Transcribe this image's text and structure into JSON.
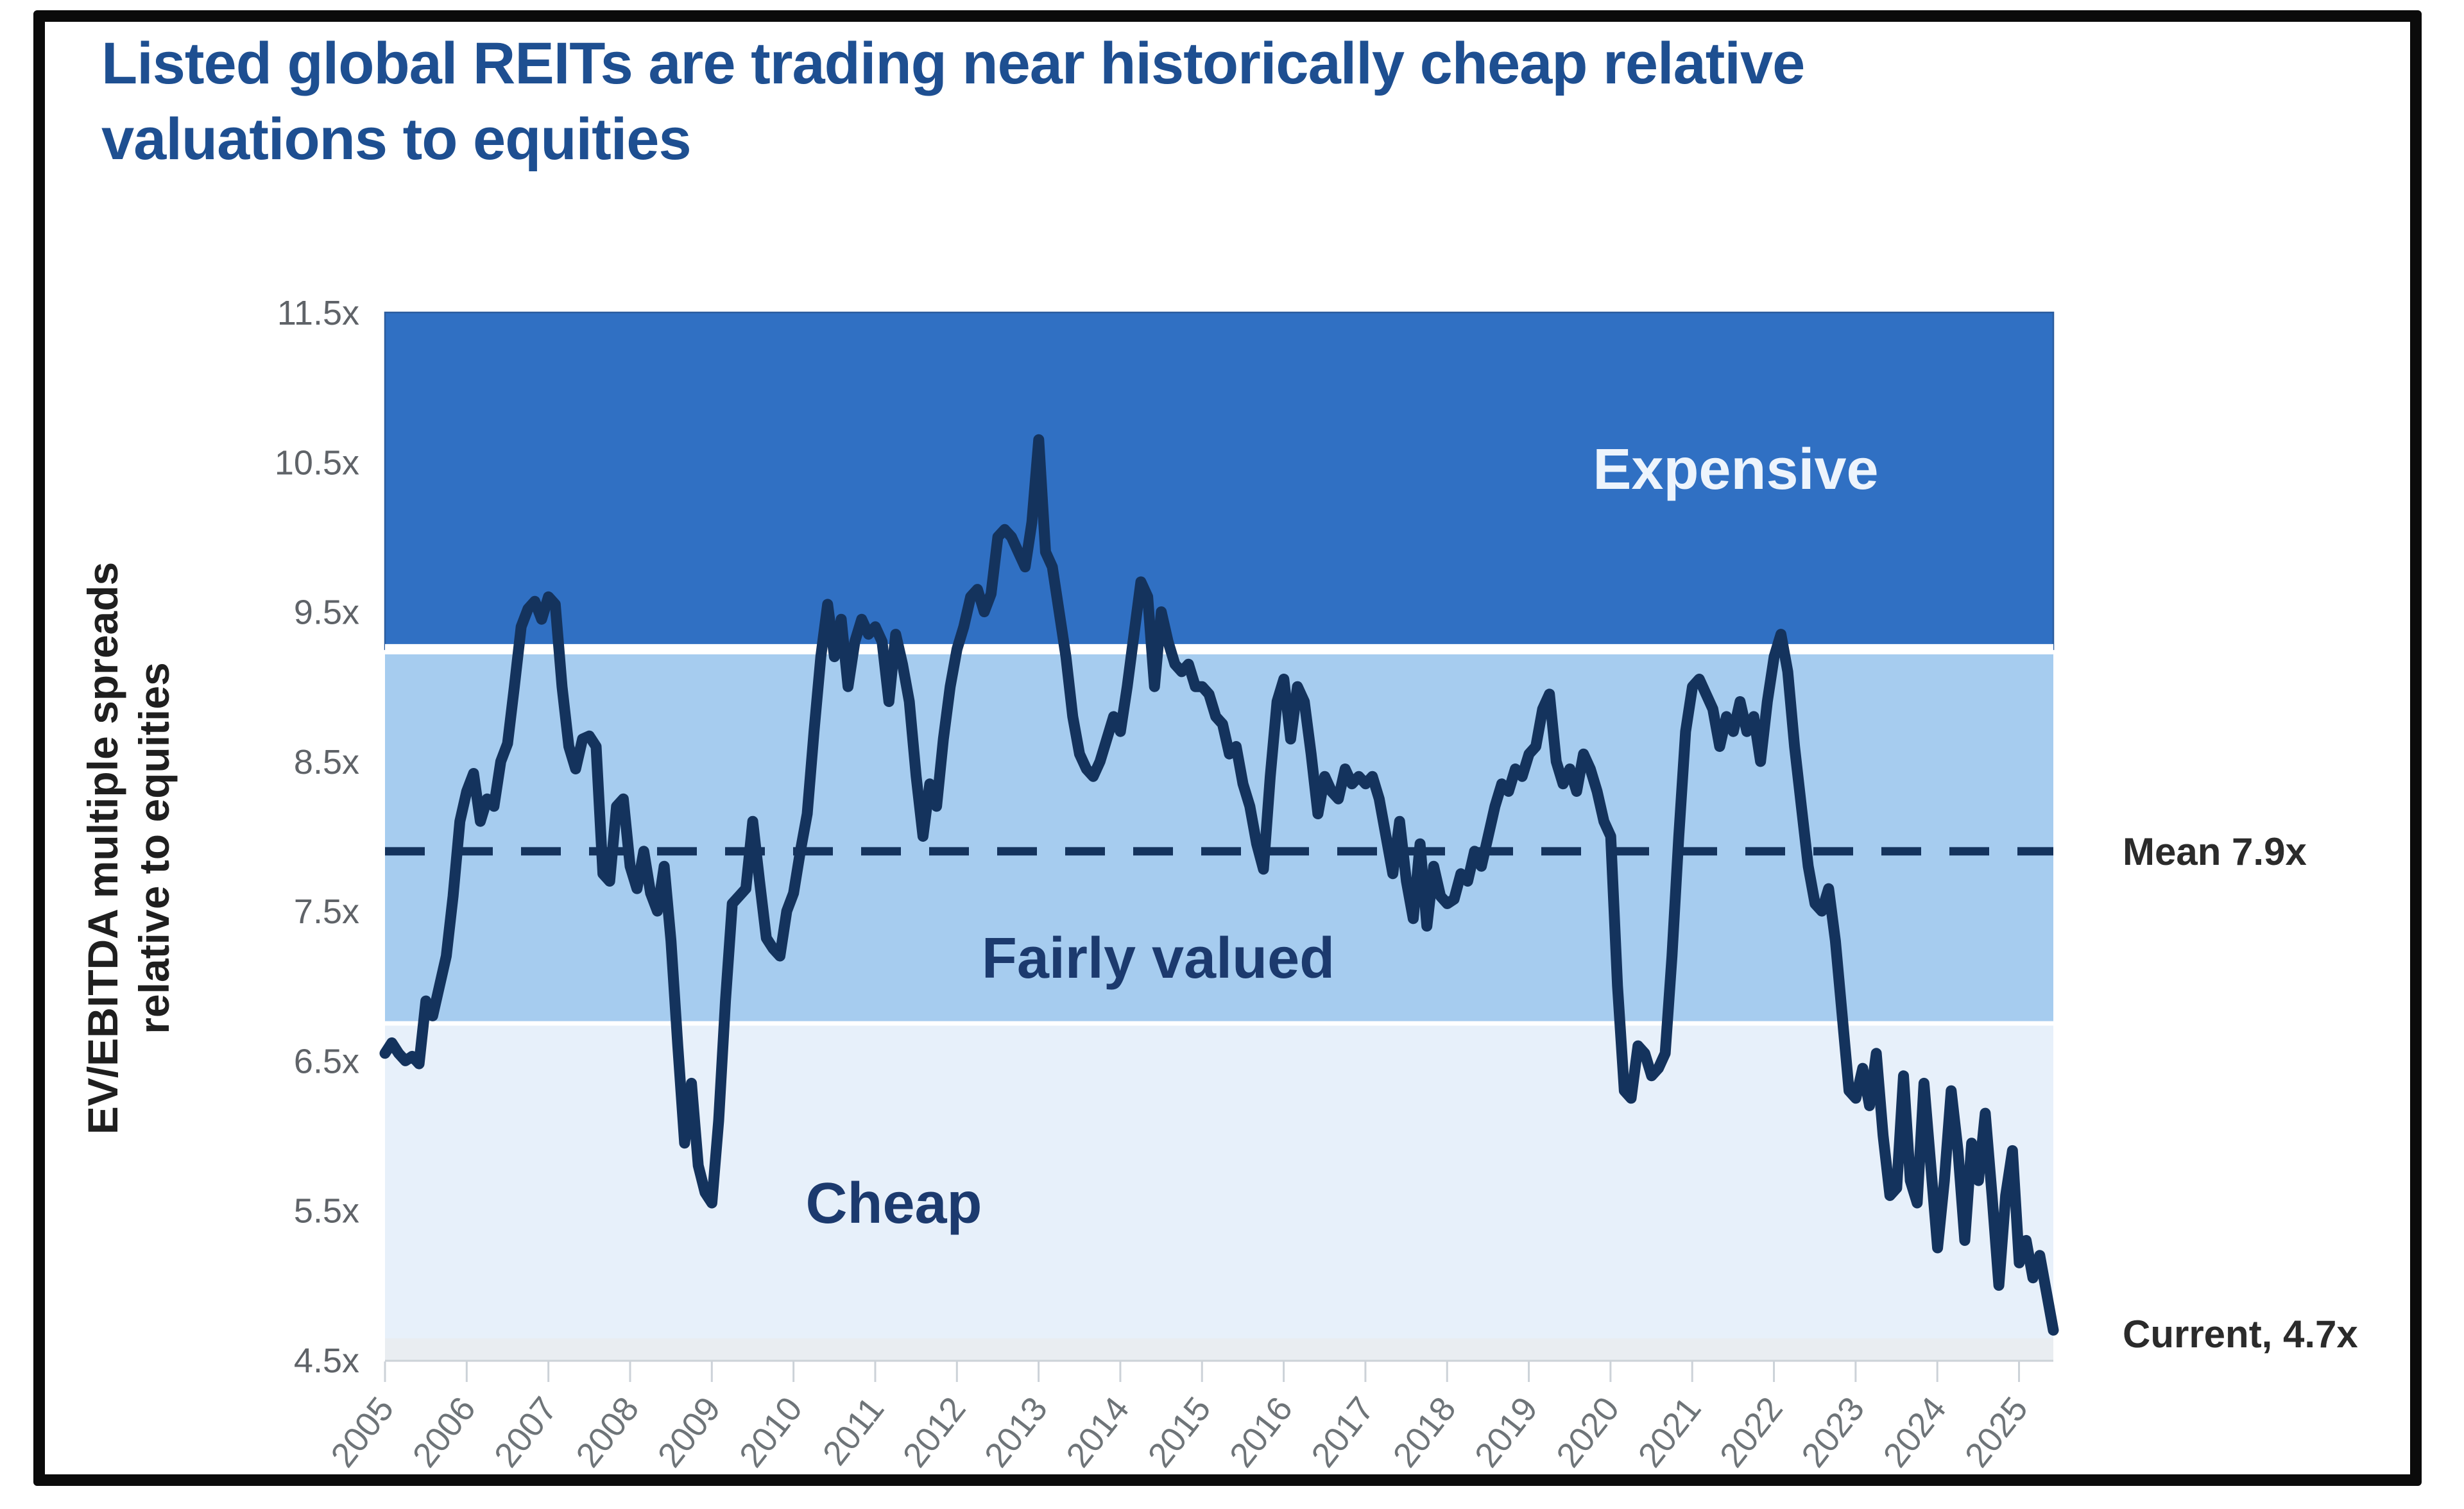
{
  "title": {
    "line1": "Listed global REITs are trading near historically cheap relative",
    "line2": "valuations to equities"
  },
  "y_axis": {
    "title_line1": "EV/EBITDA multiple spreads",
    "title_line2": "relative to equities",
    "tick_labels": [
      "11.5x",
      "10.5x",
      "9.5x",
      "8.5x",
      "7.5x",
      "6.5x",
      "5.5x",
      "4.5x"
    ],
    "tick_values": [
      11.5,
      10.5,
      9.5,
      8.5,
      7.5,
      6.5,
      5.5,
      4.5
    ]
  },
  "x_axis": {
    "labels": [
      "2005",
      "2006",
      "2007",
      "2008",
      "2009",
      "2010",
      "2011",
      "2012",
      "2013",
      "2014",
      "2015",
      "2016",
      "2017",
      "2018",
      "2019",
      "2020",
      "2021",
      "2022",
      "2023",
      "2024",
      "2025"
    ]
  },
  "zones": {
    "expensive": {
      "label": "Expensive",
      "from": 9.25,
      "to": 11.5,
      "color": "#3070c3"
    },
    "fairly_valued": {
      "label": "Fairly valued",
      "from": 6.75,
      "to": 9.25,
      "color": "#a6ccef"
    },
    "cheap": {
      "label": "Cheap",
      "from": 4.5,
      "to": 6.75,
      "color": "#e7f0fa"
    }
  },
  "annotations": {
    "mean": {
      "label": "Mean 7.9x",
      "value": 7.9
    },
    "current": {
      "label": "Current, 4.7x",
      "value": 4.7
    }
  },
  "colors": {
    "title": "#1e4f91",
    "series_line": "#14335d",
    "mean_line": "#14335d",
    "zone_expensive": "#3070c3",
    "zone_expensive_edge": "#2b5c9e",
    "zone_fairly": "#a6ccef",
    "zone_cheap": "#e7f0fa",
    "zone_dark_label": "#1c3a6e",
    "zone_light_label": "#edf4fc",
    "axis_text": "#5f6368",
    "x_label_text": "#6e7478",
    "tick_mark": "#ccd2d8",
    "baseline_band": "#e9edf1",
    "annotation_text": "#2b2b2b"
  },
  "chart_data": {
    "type": "line",
    "title": "Listed global REITs are trading near historically cheap relative valuations to equities",
    "xlabel": "",
    "ylabel": "EV/EBITDA multiple spreads relative to equities",
    "ylim": [
      4.5,
      11.5
    ],
    "xlim_years": [
      2005.0,
      2025.42
    ],
    "frequency": "monthly",
    "grid": false,
    "legend_position": "none",
    "mean": 7.9,
    "current": 4.7,
    "zone_boundaries": {
      "expensive_above": 9.25,
      "cheap_below": 6.75
    },
    "series": [
      {
        "name": "EV/EBITDA multiple spread relative to equities",
        "start_year": 2005,
        "start_month": 1,
        "values": [
          6.55,
          6.62,
          6.55,
          6.5,
          6.53,
          6.48,
          6.9,
          6.8,
          7.0,
          7.2,
          7.6,
          8.1,
          8.3,
          8.42,
          8.1,
          8.25,
          8.2,
          8.5,
          8.62,
          9.0,
          9.4,
          9.52,
          9.57,
          9.45,
          9.6,
          9.55,
          9.0,
          8.6,
          8.45,
          8.65,
          8.67,
          8.6,
          7.75,
          7.7,
          8.2,
          8.25,
          7.8,
          7.65,
          7.9,
          7.62,
          7.5,
          7.8,
          7.3,
          6.6,
          5.95,
          6.35,
          5.8,
          5.62,
          5.55,
          6.1,
          6.9,
          7.55,
          7.6,
          7.65,
          8.1,
          7.7,
          7.32,
          7.25,
          7.2,
          7.5,
          7.62,
          7.9,
          8.15,
          8.7,
          9.2,
          9.55,
          9.2,
          9.45,
          9.0,
          9.3,
          9.45,
          9.35,
          9.4,
          9.3,
          8.9,
          9.35,
          9.15,
          8.9,
          8.4,
          8.0,
          8.35,
          8.2,
          8.65,
          9.0,
          9.25,
          9.4,
          9.6,
          9.65,
          9.5,
          9.62,
          10.0,
          10.05,
          10.0,
          9.9,
          9.8,
          10.1,
          10.65,
          9.9,
          9.8,
          9.5,
          9.2,
          8.8,
          8.55,
          8.45,
          8.4,
          8.5,
          8.65,
          8.8,
          8.7,
          9.0,
          9.35,
          9.7,
          9.6,
          9.0,
          9.5,
          9.3,
          9.15,
          9.1,
          9.15,
          9.0,
          9.0,
          8.95,
          8.8,
          8.75,
          8.55,
          8.6,
          8.35,
          8.2,
          7.95,
          7.78,
          8.4,
          8.9,
          9.05,
          8.65,
          9.0,
          8.9,
          8.55,
          8.15,
          8.4,
          8.3,
          8.25,
          8.45,
          8.35,
          8.4,
          8.35,
          8.4,
          8.25,
          8.0,
          7.75,
          8.1,
          7.7,
          7.45,
          7.95,
          7.4,
          7.8,
          7.6,
          7.55,
          7.58,
          7.75,
          7.7,
          7.9,
          7.8,
          8.0,
          8.2,
          8.35,
          8.3,
          8.45,
          8.4,
          8.55,
          8.6,
          8.85,
          8.95,
          8.5,
          8.35,
          8.45,
          8.3,
          8.55,
          8.45,
          8.3,
          8.1,
          8.0,
          7.0,
          6.3,
          6.25,
          6.6,
          6.55,
          6.4,
          6.45,
          6.55,
          7.2,
          8.0,
          8.7,
          9.0,
          9.05,
          8.95,
          8.85,
          8.6,
          8.8,
          8.7,
          8.9,
          8.7,
          8.8,
          8.5,
          8.9,
          9.2,
          9.35,
          9.1,
          8.6,
          8.2,
          7.8,
          7.55,
          7.5,
          7.65,
          7.3,
          6.8,
          6.3,
          6.25,
          6.45,
          6.2,
          6.55,
          6.0,
          5.6,
          5.65,
          6.4,
          5.7,
          5.55,
          6.35,
          5.8,
          5.25,
          5.7,
          6.3,
          5.9,
          5.3,
          5.95,
          5.7,
          6.15,
          5.6,
          5.0,
          5.6,
          5.9,
          5.15,
          5.3,
          5.05,
          5.2,
          4.95,
          4.7
        ]
      }
    ]
  }
}
